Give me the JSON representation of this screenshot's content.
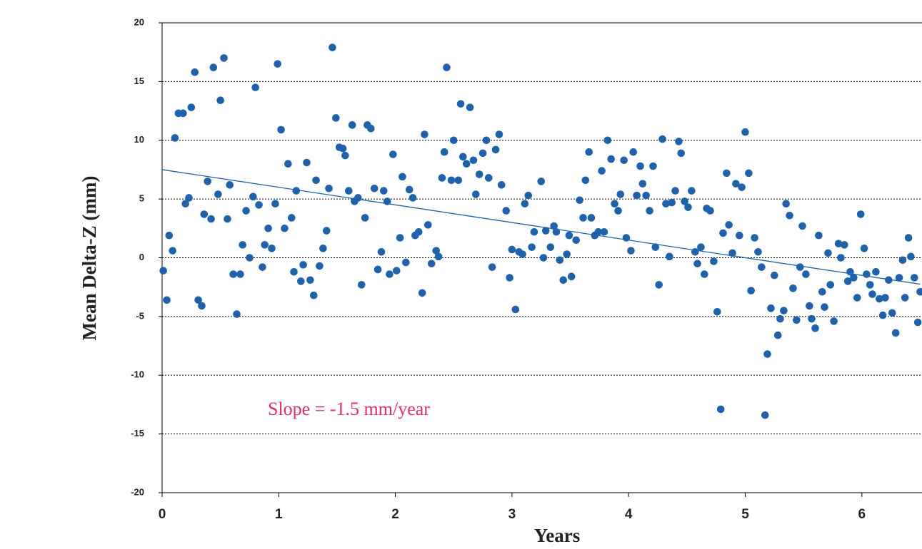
{
  "chart_data": {
    "type": "scatter",
    "x_label": "Years",
    "y_label": "Mean Delta-Z (mm)",
    "annotation": "Slope = -1.5 mm/year",
    "annotation_color": "#e0306a",
    "color": "#1f62aa",
    "grid": true,
    "xlim": [
      0,
      6.5
    ],
    "ylim": [
      -20,
      20
    ],
    "xticks": [
      0,
      1,
      2,
      3,
      4,
      5,
      6
    ],
    "yticks": [
      -20,
      -15,
      -10,
      -5,
      0,
      5,
      10,
      15,
      20
    ],
    "trend_line": {
      "color": "#1f62aa",
      "x": [
        0,
        6.5
      ],
      "values": [
        7.5,
        -2.25
      ]
    },
    "x": [
      0.01,
      0.04,
      0.06,
      0.09,
      0.11,
      0.14,
      0.18,
      0.2,
      0.23,
      0.25,
      0.28,
      0.31,
      0.34,
      0.36,
      0.39,
      0.42,
      0.44,
      0.48,
      0.5,
      0.53,
      0.56,
      0.58,
      0.61,
      0.64,
      0.67,
      0.69,
      0.72,
      0.75,
      0.78,
      0.8,
      0.83,
      0.86,
      0.88,
      0.91,
      0.94,
      0.97,
      0.99,
      1.02,
      1.05,
      1.08,
      1.11,
      1.13,
      1.15,
      1.19,
      1.21,
      1.24,
      1.27,
      1.3,
      1.32,
      1.35,
      1.38,
      1.41,
      1.43,
      1.46,
      1.49,
      1.52,
      1.55,
      1.57,
      1.6,
      1.63,
      1.65,
      1.68,
      1.71,
      1.74,
      1.76,
      1.79,
      1.82,
      1.85,
      1.88,
      1.9,
      1.93,
      1.95,
      1.98,
      2.01,
      2.04,
      2.06,
      2.09,
      2.12,
      2.15,
      2.17,
      2.2,
      2.23,
      2.25,
      2.28,
      2.31,
      2.35,
      2.37,
      2.4,
      2.42,
      2.44,
      2.48,
      2.5,
      2.54,
      2.56,
      2.58,
      2.61,
      2.64,
      2.67,
      2.69,
      2.72,
      2.75,
      2.78,
      2.8,
      2.83,
      2.86,
      2.89,
      2.91,
      2.95,
      2.98,
      3.0,
      3.03,
      3.06,
      3.09,
      3.11,
      3.14,
      3.17,
      3.19,
      3.25,
      3.27,
      3.29,
      3.33,
      3.36,
      3.38,
      3.41,
      3.44,
      3.47,
      3.49,
      3.51,
      3.55,
      3.58,
      3.61,
      3.63,
      3.66,
      3.68,
      3.71,
      3.74,
      3.77,
      3.79,
      3.82,
      3.85,
      3.88,
      3.91,
      3.93,
      3.96,
      3.98,
      4.02,
      4.04,
      4.07,
      4.1,
      4.12,
      4.15,
      4.18,
      4.21,
      4.23,
      4.26,
      4.29,
      4.32,
      4.35,
      4.37,
      4.4,
      4.43,
      4.45,
      4.48,
      4.51,
      4.54,
      4.57,
      4.59,
      4.62,
      4.65,
      4.67,
      4.7,
      4.73,
      4.76,
      4.79,
      4.81,
      4.84,
      4.86,
      4.89,
      4.92,
      4.95,
      4.97,
      5.0,
      5.03,
      5.05,
      5.08,
      5.11,
      5.14,
      5.17,
      5.19,
      5.22,
      5.25,
      5.28,
      5.3,
      5.33,
      5.35,
      5.38,
      5.41,
      5.44,
      5.47,
      5.49,
      5.52,
      5.55,
      5.57,
      5.6,
      5.63,
      5.66,
      5.68,
      5.71,
      5.73,
      5.76,
      5.8,
      5.82,
      5.85,
      5.88,
      5.9,
      5.93,
      5.96,
      5.99,
      6.02,
      6.04,
      6.07,
      6.09,
      6.12,
      6.15,
      6.18,
      6.2,
      6.23,
      6.26,
      6.29,
      6.32,
      6.35,
      6.37,
      6.4,
      6.42,
      6.45,
      6.48,
      6.5
    ],
    "values": [
      -1.1,
      -3.6,
      1.9,
      0.6,
      10.2,
      12.3,
      12.3,
      4.6,
      5.1,
      12.8,
      15.8,
      -3.6,
      -4.1,
      3.7,
      6.5,
      3.3,
      16.2,
      5.4,
      13.4,
      17.0,
      3.3,
      6.2,
      -1.4,
      -4.8,
      -1.4,
      1.1,
      4.0,
      0.0,
      5.2,
      14.5,
      4.5,
      -0.8,
      1.1,
      2.5,
      0.8,
      4.6,
      16.5,
      10.9,
      2.5,
      8.0,
      3.4,
      -1.2,
      5.7,
      -2.0,
      -0.6,
      8.1,
      -1.9,
      -3.2,
      6.6,
      -0.7,
      0.8,
      2.3,
      5.9,
      17.9,
      11.9,
      9.4,
      9.3,
      8.7,
      5.7,
      11.3,
      4.8,
      5.1,
      -2.3,
      3.4,
      11.3,
      11.0,
      5.9,
      -1.0,
      0.5,
      5.7,
      4.8,
      -1.4,
      8.8,
      -1.1,
      1.7,
      6.9,
      -0.4,
      5.8,
      5.1,
      1.9,
      2.2,
      -3.0,
      10.5,
      2.8,
      -0.5,
      0.6,
      0.1,
      6.8,
      9.0,
      16.2,
      6.6,
      10.0,
      6.6,
      13.1,
      8.6,
      8.0,
      12.8,
      8.3,
      5.4,
      7.1,
      8.9,
      10.0,
      6.8,
      -0.8,
      9.2,
      10.5,
      6.2,
      4.0,
      -1.7,
      0.7,
      -4.4,
      0.5,
      0.3,
      4.6,
      5.3,
      0.9,
      2.2,
      6.5,
      0.0,
      2.3,
      0.9,
      2.7,
      2.2,
      -0.2,
      -1.9,
      0.3,
      1.9,
      -1.6,
      1.5,
      4.9,
      3.4,
      6.6,
      9.0,
      3.4,
      1.9,
      2.2,
      7.4,
      2.2,
      10.0,
      8.4,
      4.6,
      4.0,
      5.4,
      8.3,
      1.7,
      0.6,
      9.0,
      5.3,
      7.8,
      6.3,
      5.3,
      4.0,
      7.8,
      0.9,
      -2.3,
      10.1,
      4.6,
      0.1,
      4.7,
      5.7,
      9.9,
      8.9,
      4.8,
      4.3,
      5.7,
      0.5,
      -0.5,
      0.9,
      -1.4,
      4.2,
      4.0,
      -0.3,
      -4.6,
      -12.9,
      2.1,
      7.2,
      2.8,
      0.4,
      6.3,
      1.9,
      6.0,
      10.7,
      7.2,
      -2.8,
      1.7,
      0.5,
      -0.8,
      -13.4,
      -8.2,
      -4.3,
      -1.5,
      -6.6,
      -5.2,
      -4.5,
      4.6,
      3.6,
      -2.6,
      -5.3,
      -0.8,
      2.7,
      -1.4,
      -4.1,
      -5.2,
      -6.0,
      1.9,
      -2.9,
      -4.2,
      0.4,
      -2.3,
      -5.4,
      1.2,
      0.0,
      1.1,
      -2.0,
      -1.2,
      -1.7,
      -3.4,
      3.7,
      0.8,
      -1.4,
      -2.3,
      -3.1,
      -1.2,
      -3.5,
      -4.9,
      -3.4,
      -1.9,
      -4.7,
      -6.4,
      -1.7,
      -0.2,
      -3.4,
      1.7,
      0.1,
      -1.7,
      -5.5,
      -2.9
    ]
  }
}
